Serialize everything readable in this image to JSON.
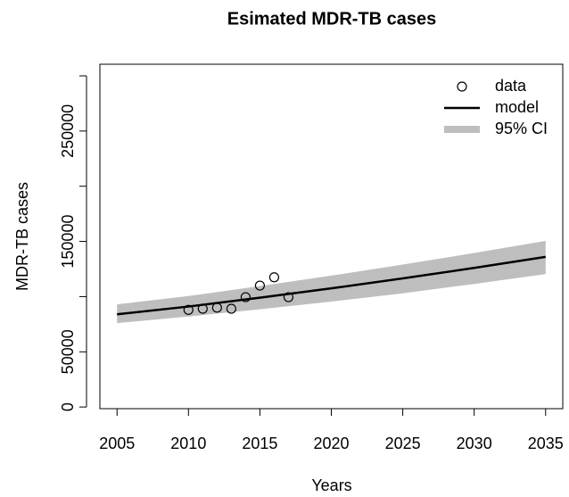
{
  "chart_data": {
    "type": "line",
    "title": "Esimated MDR-TB cases",
    "xlabel": "Years",
    "ylabel": "MDR-TB cases",
    "xlim": [
      2003.8,
      2036.2
    ],
    "xticks": [
      2005,
      2010,
      2015,
      2020,
      2025,
      2030,
      2035
    ],
    "ylim": [
      -1500,
      310500
    ],
    "yticks": [
      0,
      50000,
      150000,
      250000
    ],
    "yminor_ticks": [
      100000,
      200000,
      300000
    ],
    "legend": "top-right",
    "series": [
      {
        "name": "data",
        "kind": "points",
        "color": "#000000",
        "x": [
          2010,
          2011,
          2012,
          2013,
          2014,
          2015,
          2016,
          2017
        ],
        "values": [
          88000,
          89000,
          90000,
          89000,
          99500,
          110000,
          117500,
          99500
        ]
      },
      {
        "name": "model",
        "kind": "line",
        "color": "#000000",
        "x": [
          2005,
          2010,
          2015,
          2020,
          2025,
          2030,
          2035
        ],
        "values": [
          84000,
          91000,
          99000,
          107500,
          116500,
          126000,
          136000
        ]
      },
      {
        "name": "95% CI",
        "kind": "band",
        "color": "#bebebe",
        "x": [
          2005,
          2010,
          2015,
          2020,
          2025,
          2030,
          2035
        ],
        "lower": [
          76000,
          82000,
          88500,
          95500,
          103000,
          111500,
          120500
        ],
        "upper": [
          93000,
          100500,
          109500,
          119000,
          129000,
          139500,
          150500
        ]
      }
    ]
  }
}
